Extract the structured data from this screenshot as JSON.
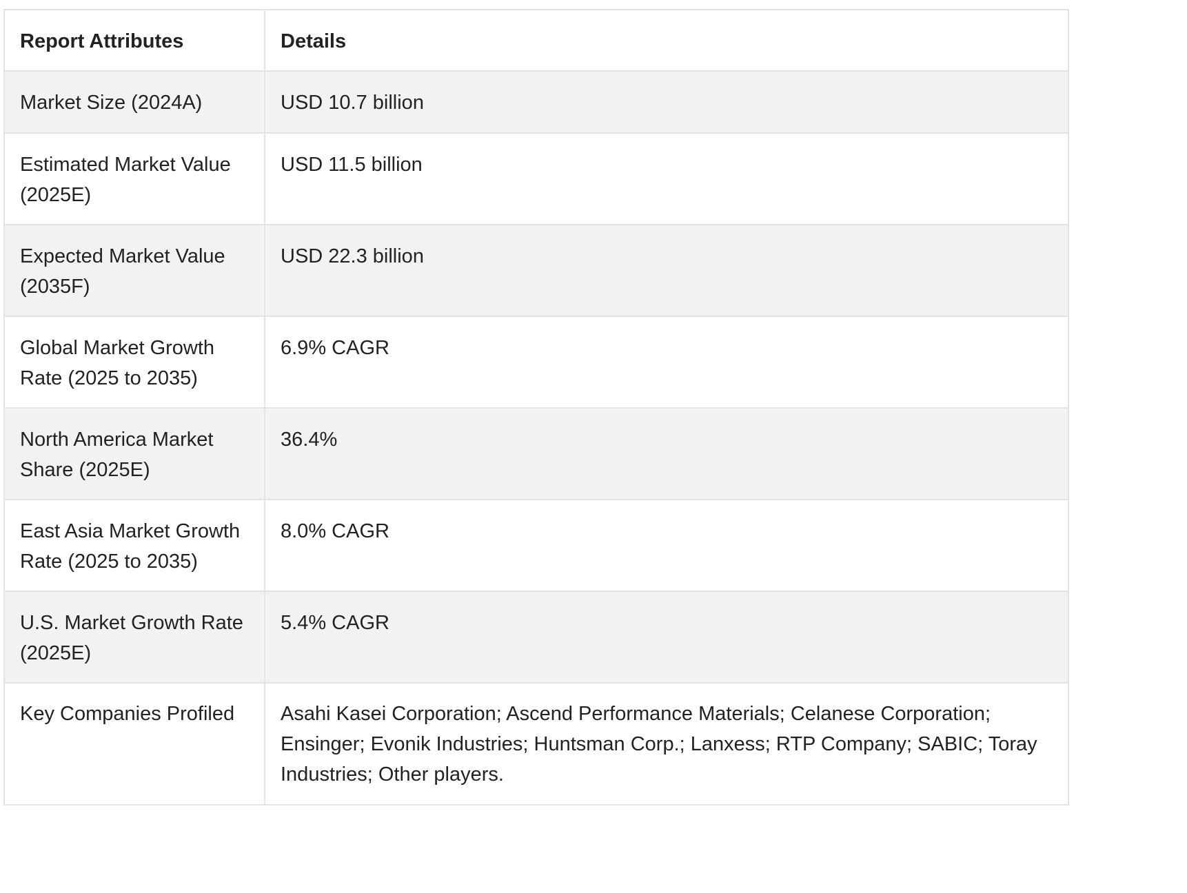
{
  "table": {
    "headers": [
      "Report Attributes",
      "Details"
    ],
    "rows": [
      {
        "attribute": "Market Size (2024A)",
        "details": "USD 10.7 billion"
      },
      {
        "attribute": "Estimated Market Value (2025E)",
        "details": "USD 11.5 billion"
      },
      {
        "attribute": "Expected Market Value (2035F)",
        "details": "USD 22.3 billion"
      },
      {
        "attribute": "Global Market Growth Rate (2025 to 2035)",
        "details": "6.9% CAGR"
      },
      {
        "attribute": "North America Market Share (2025E)",
        "details": "36.4%"
      },
      {
        "attribute": "East Asia Market Growth Rate (2025 to 2035)",
        "details": "8.0% CAGR"
      },
      {
        "attribute": "U.S. Market Growth Rate (2025E)",
        "details": "5.4% CAGR"
      },
      {
        "attribute": "Key Companies Profiled",
        "details": "Asahi Kasei Corporation; Ascend Performance Materials; Celanese Corporation; Ensinger; Evonik Industries; Huntsman Corp.; Lanxess; RTP Company; SABIC; Toray Industries; Other players."
      }
    ]
  }
}
